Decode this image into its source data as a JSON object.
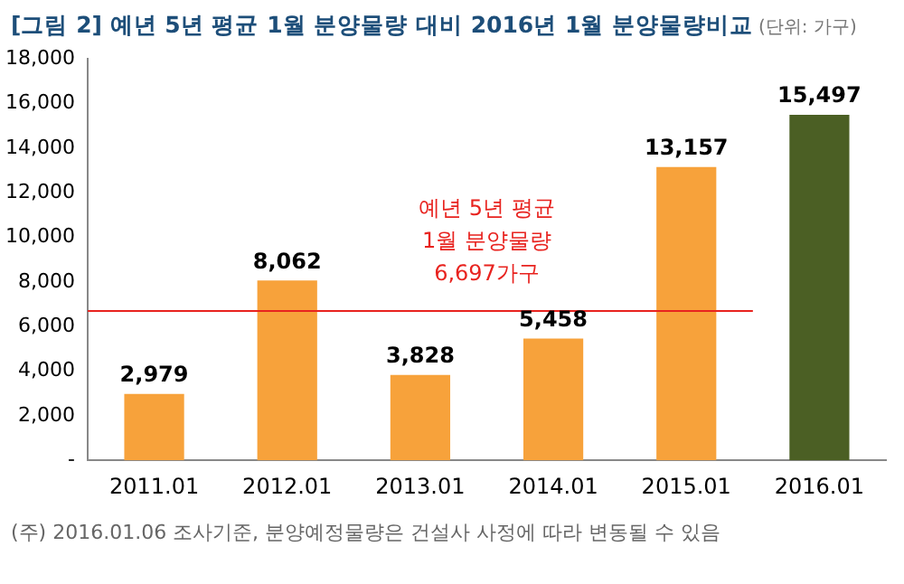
{
  "chart_data": {
    "type": "bar",
    "title": "[그림 2] 예년 5년 평균 1월 분양물량 대비 2016년 1월 분양물량비교",
    "subtitle": "(단위: 가구)",
    "categories": [
      "2011.01",
      "2012.01",
      "2013.01",
      "2014.01",
      "2015.01",
      "2016.01"
    ],
    "values": [
      2979,
      8062,
      3828,
      5458,
      13157,
      15497
    ],
    "colors": [
      "#f7a23b",
      "#f7a23b",
      "#f7a23b",
      "#f7a23b",
      "#f7a23b",
      "#4b5f24"
    ],
    "value_labels": [
      "2,979",
      "8,062",
      "3,828",
      "5,458",
      "13,157",
      "15,497"
    ],
    "ylim": [
      0,
      18000
    ],
    "yticks": [
      {
        "value": 0,
        "label": "-"
      },
      {
        "value": 2000,
        "label": "2,000"
      },
      {
        "value": 4000,
        "label": "4,000"
      },
      {
        "value": 6000,
        "label": "6,000"
      },
      {
        "value": 8000,
        "label": "8,000"
      },
      {
        "value": 10000,
        "label": "10,000"
      },
      {
        "value": 12000,
        "label": "12,000"
      },
      {
        "value": 14000,
        "label": "14,000"
      },
      {
        "value": 16000,
        "label": "16,000"
      },
      {
        "value": 18000,
        "label": "18,000"
      }
    ],
    "ref_lines": [
      {
        "axis": "y",
        "value": 6697,
        "label": "예년 5년 평균\n1월 분양물량\n6,697가구",
        "color": "#e8231f"
      }
    ],
    "grid": false,
    "annotations": [
      "(주) 2016.01.06 조사기준, 분양예정물량은 건설사 사정에 따라 변동될 수 있음"
    ]
  }
}
